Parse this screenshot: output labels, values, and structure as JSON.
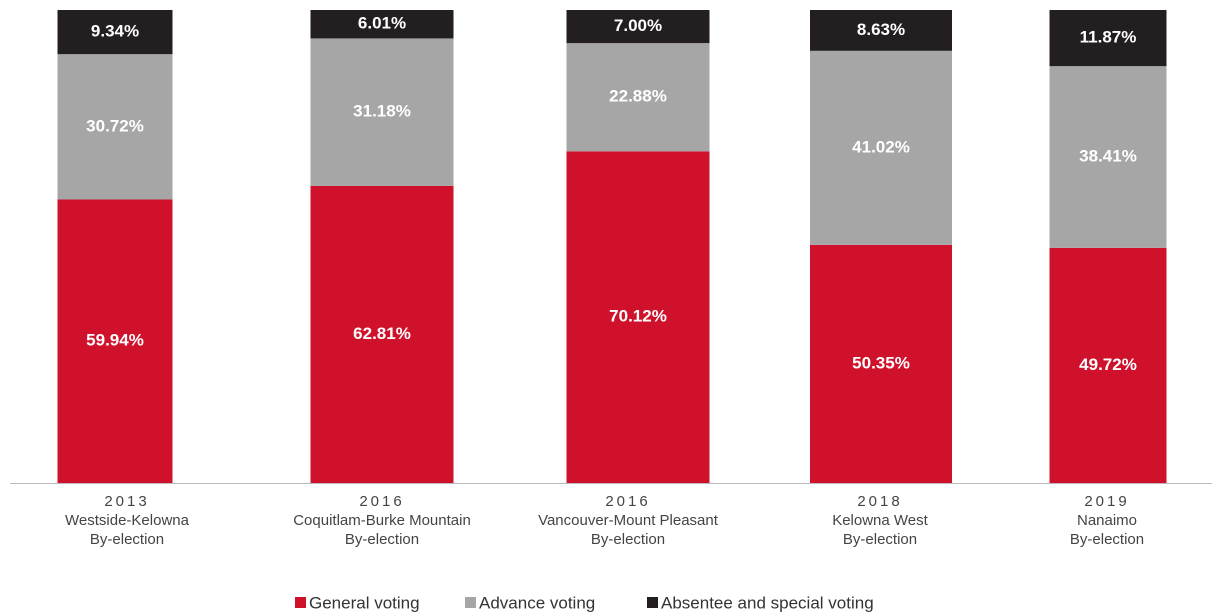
{
  "chart_data": {
    "type": "stacked_bar",
    "categories": [
      [
        "2013",
        "Westside-Kelowna",
        "By-election"
      ],
      [
        "2016",
        "Coquitlam-Burke Mountain",
        "By-election"
      ],
      [
        "2016",
        "Vancouver-Mount Pleasant",
        "By-election"
      ],
      [
        "2018",
        "Kelowna West",
        "By-election"
      ],
      [
        "2019",
        "Nanaimo",
        "By-election"
      ]
    ],
    "series": [
      {
        "name": "General voting",
        "color": "#d0112b",
        "values": [
          59.94,
          62.81,
          70.12,
          50.35,
          49.72
        ],
        "value_labels": [
          "59.94%",
          "62.81%",
          "70.12%",
          "50.35%",
          "49.72%"
        ]
      },
      {
        "name": "Advance voting",
        "color": "#a6a6a6",
        "values": [
          30.72,
          31.18,
          22.88,
          41.02,
          38.41
        ],
        "value_labels": [
          "30.72%",
          "31.18%",
          "22.88%",
          "41.02%",
          "38.41%"
        ]
      },
      {
        "name": "Absentee and special voting",
        "color": "#231f20",
        "values": [
          9.34,
          6.01,
          7.0,
          8.63,
          11.87
        ],
        "value_labels": [
          "9.34%",
          "6.01%",
          "7.00%",
          "8.63%",
          "11.87%"
        ]
      }
    ],
    "ylim": [
      0,
      100
    ],
    "legend": "bottom"
  }
}
